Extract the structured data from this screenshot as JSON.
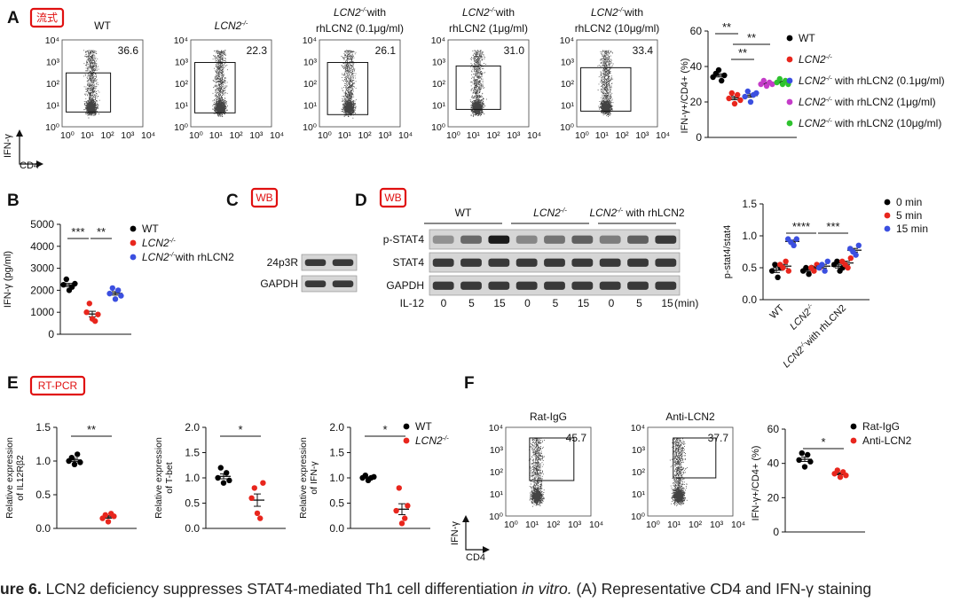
{
  "panels": {
    "A": {
      "letter": "A",
      "tag": "流式",
      "flow": {
        "yaxis": "IFN-γ",
        "xaxis": "CD4",
        "ticks": [
          "10⁰",
          "10¹",
          "10²",
          "10³",
          "10⁴"
        ],
        "plots": [
          {
            "title": "WT",
            "gene": "",
            "sup": "",
            "suffix": "",
            "value": "36.6"
          },
          {
            "title": "",
            "gene": "LCN2",
            "sup": "-/-",
            "suffix": "",
            "value": "22.3"
          },
          {
            "title": "",
            "gene": "LCN2",
            "sup": "-/-",
            "suffix": "with",
            "line2": "rhLCN2 (0.1μg/ml)",
            "value": "26.1"
          },
          {
            "title": "",
            "gene": "LCN2",
            "sup": "-/-",
            "suffix": "with",
            "line2": "rhLCN2 (1μg/ml)",
            "value": "31.0"
          },
          {
            "title": "",
            "gene": "LCN2",
            "sup": "-/-",
            "suffix": "with",
            "line2": "rhLCN2 (10μg/ml)",
            "value": "33.4"
          }
        ]
      },
      "scatter": {
        "ylabel": "IFN-γ+/CD4+ (%)",
        "yticks": [
          "0",
          "20",
          "40",
          "60"
        ],
        "sig": [
          "**",
          "**",
          "**"
        ],
        "legend": [
          {
            "gene": "",
            "text": "WT",
            "color": "#000000"
          },
          {
            "gene": "LCN2",
            "sup": "-/-",
            "text": "",
            "color": "#e8261d"
          },
          {
            "gene": "LCN2",
            "sup": "-/-",
            "text": " with rhLCN2 (0.1μg/ml)",
            "color": "#3b4fe0"
          },
          {
            "gene": "LCN2",
            "sup": "-/-",
            "text": " with rhLCN2 (1μg/ml)",
            "color": "#c43cc8"
          },
          {
            "gene": "LCN2",
            "sup": "-/-",
            "text": " with rhLCN2 (10μg/ml)",
            "color": "#2ec22e"
          }
        ]
      }
    },
    "B": {
      "letter": "B",
      "ylabel": "IFN-γ (pg/ml)",
      "yticks": [
        "0",
        "1000",
        "2000",
        "3000",
        "4000",
        "5000"
      ],
      "sig": [
        "***",
        "**"
      ],
      "legend": [
        {
          "gene": "",
          "text": "WT",
          "color": "#000000"
        },
        {
          "gene": "LCN2",
          "sup": "-/-",
          "text": "",
          "color": "#e8261d"
        },
        {
          "gene": "LCN2",
          "sup": "-/-",
          "text": "with rhLCN2",
          "color": "#3b4fe0"
        }
      ]
    },
    "C": {
      "letter": "C",
      "tag": "WB",
      "rows": [
        "24p3R",
        "GAPDH"
      ]
    },
    "D": {
      "letter": "D",
      "tag": "WB",
      "groups": [
        {
          "gene": "",
          "text": "WT"
        },
        {
          "gene": "LCN2",
          "sup": "-/-",
          "text": ""
        },
        {
          "gene": "LCN2",
          "sup": "-/-",
          "text": " with rhLCN2"
        }
      ],
      "rows": [
        "p-STAT4",
        "STAT4",
        "GAPDH"
      ],
      "il12_label": "IL-12",
      "times": [
        "0",
        "5",
        "15",
        "0",
        "5",
        "15",
        "0",
        "5",
        "15"
      ],
      "unit": "(min)",
      "scatter": {
        "ylabel": "p-stat4/stat4",
        "yticks": [
          "0.0",
          "0.5",
          "1.0",
          "1.5"
        ],
        "sig": [
          "****",
          "***"
        ],
        "xcats": [
          {
            "gene": "",
            "text": "WT"
          },
          {
            "gene": "LCN2",
            "sup": "-/-",
            "text": ""
          },
          {
            "gene": "LCN2",
            "sup": "-/-",
            "text": "with rhLCN2"
          }
        ],
        "legend": [
          {
            "text": "0 min",
            "color": "#000000"
          },
          {
            "text": "5 min",
            "color": "#e8261d"
          },
          {
            "text": "15 min",
            "color": "#3b4fe0"
          }
        ]
      }
    },
    "E": {
      "letter": "E",
      "tag": "RT-PCR",
      "plots": [
        {
          "ylabel1": "Relative expression",
          "ylabel2": "of IL12Rβ2",
          "yticks": [
            "0.0",
            "0.5",
            "1.0",
            "1.5"
          ],
          "sig": "**"
        },
        {
          "ylabel1": "Relative expression",
          "ylabel2": "of T-bet",
          "yticks": [
            "0.0",
            "0.5",
            "1.0",
            "1.5",
            "2.0"
          ],
          "sig": "*"
        },
        {
          "ylabel1": "Relative expression",
          "ylabel2": "of IFN-γ",
          "yticks": [
            "0.0",
            "0.5",
            "1.0",
            "1.5",
            "2.0"
          ],
          "sig": "*"
        }
      ],
      "legend": [
        {
          "gene": "",
          "text": "WT",
          "color": "#000000"
        },
        {
          "gene": "LCN2",
          "sup": "-/-",
          "text": "",
          "color": "#e8261d"
        }
      ]
    },
    "F": {
      "letter": "F",
      "flow": {
        "yaxis": "IFN-γ",
        "xaxis": "CD4",
        "ticks": [
          "10⁰",
          "10¹",
          "10²",
          "10³",
          "10⁴"
        ],
        "plots": [
          {
            "title": "Rat-IgG",
            "value": "45.7"
          },
          {
            "title": "Anti-LCN2",
            "value": "37.7"
          }
        ]
      },
      "scatter": {
        "ylabel": "IFN-γ+/CD4+ (%)",
        "yticks": [
          "0",
          "20",
          "40",
          "60"
        ],
        "sig": "*",
        "legend": [
          {
            "text": "Rat-IgG",
            "color": "#000000"
          },
          {
            "text": "Anti-LCN2",
            "color": "#e8261d"
          }
        ]
      }
    }
  },
  "caption": {
    "label": "ure 6.",
    "text": " LCN2 deficiency suppresses STAT4-mediated Th1 cell differentiation ",
    "italic": "in vitro.",
    "tail": " (A) Representative CD4 and IFN-γ staining"
  }
}
